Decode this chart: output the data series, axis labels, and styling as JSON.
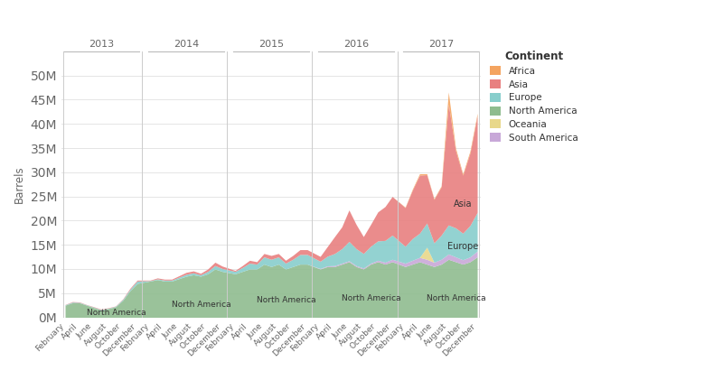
{
  "title": "",
  "ylabel": "Barrels",
  "colors": {
    "Africa": "#F4A460",
    "Asia": "#E88080",
    "Europe": "#87CECC",
    "North America": "#8FBC8F",
    "Oceania": "#E8D88A",
    "South America": "#C8A8D8"
  },
  "continents": [
    "North America",
    "South America",
    "Oceania",
    "Europe",
    "Asia",
    "Africa"
  ],
  "years": [
    2013,
    2014,
    2015,
    2016,
    2017
  ],
  "months_per_year": 11,
  "background_color": "#ffffff",
  "grid_color": "#e0e0e0",
  "ylim": [
    0,
    55000000
  ],
  "yticks": [
    0,
    5000000,
    10000000,
    15000000,
    20000000,
    25000000,
    30000000,
    35000000,
    40000000,
    45000000,
    50000000
  ],
  "month_labels": [
    "February",
    "April",
    "June",
    "August",
    "October",
    "December"
  ],
  "month_indices": [
    0,
    2,
    4,
    6,
    8,
    10
  ],
  "data": {
    "North America": [
      2500000,
      3000000,
      3000000,
      2500000,
      2000000,
      1500000,
      1800000,
      2200000,
      3500000,
      5500000,
      7000000,
      7500000,
      7800000,
      7500000,
      7500000,
      8000000,
      8500000,
      8800000,
      8500000,
      9000000,
      10000000,
      9500000,
      9000000,
      9500000,
      10000000,
      10000000,
      11000000,
      10500000,
      11000000,
      10000000,
      10500000,
      11000000,
      11000000,
      10000000,
      10500000,
      10500000,
      11000000,
      11500000,
      10500000,
      10000000,
      11000000,
      11500000,
      11000000,
      11500000,
      10500000,
      11000000,
      11500000,
      11000000,
      10500000,
      11000000,
      12000000,
      11500000,
      11000000,
      11500000,
      12500000
    ],
    "South America": [
      0,
      0,
      0,
      0,
      0,
      0,
      0,
      0,
      0,
      0,
      0,
      0,
      0,
      0,
      0,
      0,
      0,
      0,
      0,
      0,
      0,
      0,
      0,
      0,
      0,
      0,
      0,
      0,
      0,
      0,
      0,
      0,
      0,
      100000,
      150000,
      200000,
      200000,
      200000,
      200000,
      200000,
      200000,
      300000,
      400000,
      500000,
      700000,
      800000,
      900000,
      1000000,
      900000,
      1000000,
      1100000,
      1000000,
      900000,
      1000000,
      1200000
    ],
    "Oceania": [
      0,
      0,
      0,
      0,
      0,
      0,
      0,
      0,
      0,
      0,
      0,
      0,
      0,
      0,
      0,
      0,
      0,
      0,
      0,
      0,
      0,
      0,
      0,
      0,
      0,
      0,
      0,
      0,
      0,
      0,
      0,
      0,
      0,
      0,
      0,
      0,
      0,
      0,
      0,
      0,
      0,
      0,
      0,
      0,
      0,
      0,
      0,
      2500000,
      0,
      0,
      0,
      0,
      0,
      0,
      0
    ],
    "Europe": [
      100000,
      150000,
      100000,
      80000,
      100000,
      100000,
      100000,
      100000,
      200000,
      300000,
      500000,
      100000,
      150000,
      200000,
      200000,
      300000,
      400000,
      400000,
      300000,
      500000,
      700000,
      600000,
      500000,
      800000,
      1200000,
      1000000,
      1500000,
      1500000,
      1500000,
      1200000,
      1500000,
      2000000,
      2000000,
      1500000,
      2000000,
      2500000,
      3000000,
      4000000,
      3500000,
      3000000,
      3500000,
      4000000,
      4500000,
      5000000,
      3500000,
      4500000,
      5000000,
      5000000,
      4000000,
      5000000,
      6000000,
      6000000,
      5500000,
      6500000,
      8000000
    ],
    "Asia": [
      50000,
      100000,
      80000,
      50000,
      80000,
      100000,
      80000,
      50000,
      100000,
      200000,
      200000,
      100000,
      200000,
      200000,
      200000,
      300000,
      400000,
      400000,
      300000,
      500000,
      700000,
      500000,
      200000,
      400000,
      600000,
      500000,
      700000,
      800000,
      700000,
      600000,
      800000,
      1000000,
      1000000,
      1000000,
      2000000,
      3500000,
      4500000,
      6500000,
      5000000,
      3500000,
      4500000,
      6000000,
      7000000,
      8000000,
      8000000,
      10000000,
      12000000,
      10000000,
      9000000,
      10000000,
      25000000,
      16000000,
      12000000,
      15000000,
      20000000
    ],
    "Africa": [
      0,
      0,
      0,
      0,
      0,
      0,
      0,
      0,
      0,
      0,
      0,
      0,
      0,
      0,
      0,
      0,
      0,
      0,
      0,
      0,
      0,
      0,
      0,
      0,
      0,
      0,
      0,
      0,
      0,
      0,
      0,
      0,
      0,
      0,
      0,
      0,
      0,
      0,
      0,
      0,
      0,
      0,
      0,
      0,
      100000,
      200000,
      300000,
      200000,
      150000,
      200000,
      2500000,
      500000,
      300000,
      400000,
      500000
    ]
  },
  "legend_order": [
    "Africa",
    "Asia",
    "Europe",
    "North America",
    "Oceania",
    "South America"
  ],
  "labels": {
    "North America": [
      0,
      1,
      2,
      3,
      4
    ],
    "Europe": [
      4
    ],
    "Asia": [
      4
    ]
  }
}
